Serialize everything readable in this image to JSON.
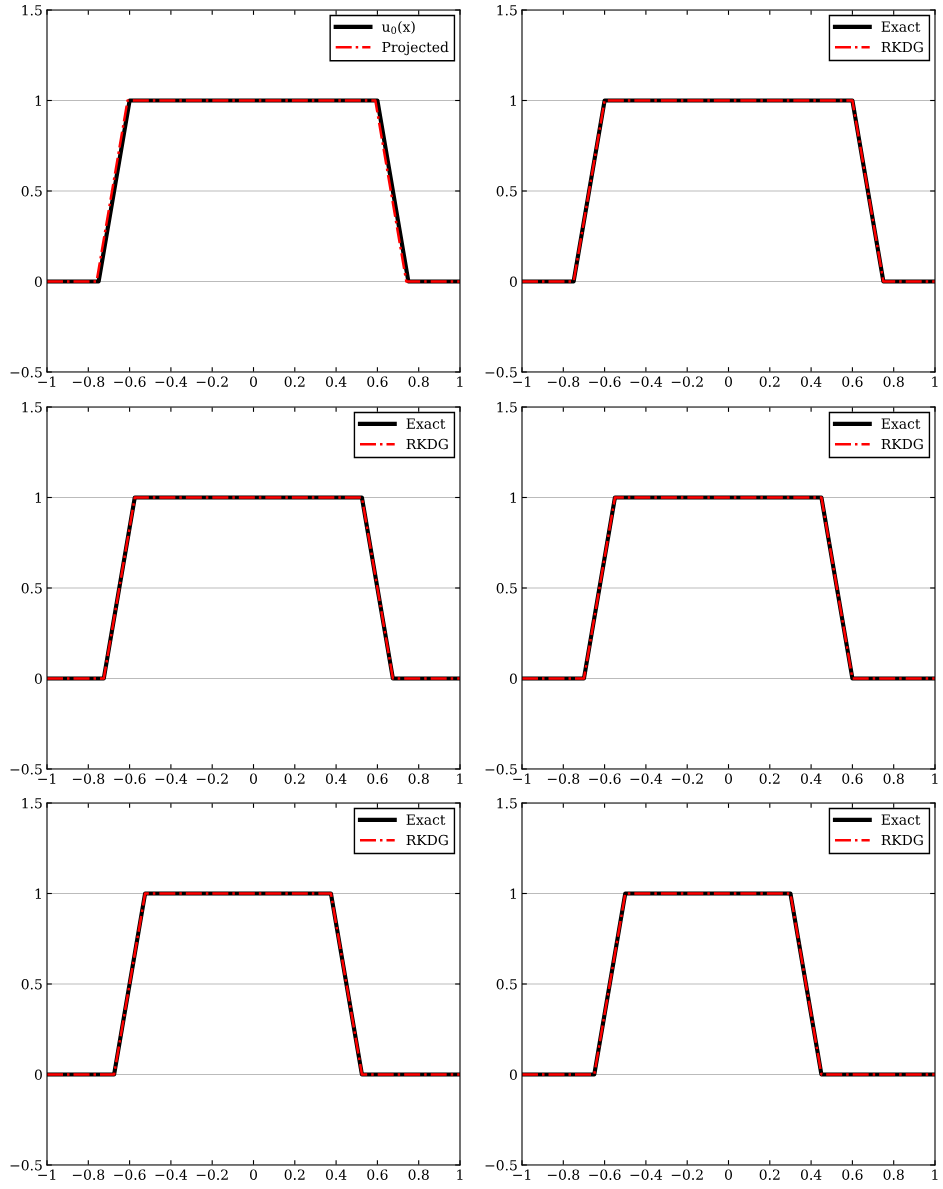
{
  "chart_data": [
    {
      "type": "line",
      "xlim": [
        -1,
        1
      ],
      "ylim": [
        -0.5,
        1.5
      ],
      "xticks": [
        -1,
        -0.8,
        -0.6,
        -0.4,
        -0.2,
        0,
        0.2,
        0.4,
        0.6,
        0.8,
        1
      ],
      "yticks": [
        -0.5,
        0,
        0.5,
        1,
        1.5
      ],
      "grid": "y",
      "legend": "top right",
      "series": [
        {
          "name": "u$_{0}$(x)",
          "color": "#000000",
          "line_style": "solid",
          "x": [
            -1,
            -0.75,
            -0.6,
            0.6,
            0.75,
            1
          ],
          "values": [
            0,
            0,
            1,
            1,
            0,
            0
          ]
        },
        {
          "name": "Projected",
          "color": "#ff0000",
          "line_style": "dashdot",
          "x": [
            -1,
            -0.76,
            -0.61,
            0.59,
            0.74,
            1
          ],
          "values": [
            0,
            0,
            1,
            1,
            0,
            0
          ]
        }
      ]
    },
    {
      "type": "line",
      "xlim": [
        -1,
        1
      ],
      "ylim": [
        -0.5,
        1.5
      ],
      "xticks": [
        -1,
        -0.8,
        -0.6,
        -0.4,
        -0.2,
        0,
        0.2,
        0.4,
        0.6,
        0.8,
        1
      ],
      "yticks": [
        -0.5,
        0,
        0.5,
        1,
        1.5
      ],
      "grid": "y",
      "legend": "top right",
      "series": [
        {
          "name": "Exact",
          "color": "#000000",
          "line_style": "solid",
          "x": [
            -1,
            -0.75,
            -0.6,
            0.6,
            0.75,
            1
          ],
          "values": [
            0,
            0,
            1,
            1,
            0,
            0
          ]
        },
        {
          "name": "RKDG",
          "color": "#ff0000",
          "line_style": "dashdot",
          "x": [
            -1,
            -0.75,
            -0.6,
            0.6,
            0.75,
            1
          ],
          "values": [
            0,
            0,
            1,
            1,
            0,
            0
          ]
        }
      ]
    },
    {
      "type": "line",
      "xlim": [
        -1,
        1
      ],
      "ylim": [
        -0.5,
        1.5
      ],
      "xticks": [
        -1,
        -0.8,
        -0.6,
        -0.4,
        -0.2,
        0,
        0.2,
        0.4,
        0.6,
        0.8,
        1
      ],
      "yticks": [
        -0.5,
        0,
        0.5,
        1,
        1.5
      ],
      "grid": "y",
      "legend": "top right",
      "series": [
        {
          "name": "Exact",
          "color": "#000000",
          "line_style": "solid",
          "x": [
            -1,
            -0.725,
            -0.575,
            0.525,
            0.675,
            1
          ],
          "values": [
            0,
            0,
            1,
            1,
            0,
            0
          ]
        },
        {
          "name": "RKDG",
          "color": "#ff0000",
          "line_style": "dashdot",
          "x": [
            -1,
            -0.725,
            -0.575,
            0.525,
            0.675,
            1
          ],
          "values": [
            0,
            0,
            1,
            1,
            0,
            0
          ]
        }
      ]
    },
    {
      "type": "line",
      "xlim": [
        -1,
        1
      ],
      "ylim": [
        -0.5,
        1.5
      ],
      "xticks": [
        -1,
        -0.8,
        -0.6,
        -0.4,
        -0.2,
        0,
        0.2,
        0.4,
        0.6,
        0.8,
        1
      ],
      "yticks": [
        -0.5,
        0,
        0.5,
        1,
        1.5
      ],
      "grid": "y",
      "legend": "top right",
      "series": [
        {
          "name": "Exact",
          "color": "#000000",
          "line_style": "solid",
          "x": [
            -1,
            -0.7,
            -0.55,
            0.45,
            0.6,
            1
          ],
          "values": [
            0,
            0,
            1,
            1,
            0,
            0
          ]
        },
        {
          "name": "RKDG",
          "color": "#ff0000",
          "line_style": "dashdot",
          "x": [
            -1,
            -0.7,
            -0.55,
            0.45,
            0.6,
            1
          ],
          "values": [
            0,
            0,
            1,
            1,
            0,
            0
          ]
        }
      ]
    },
    {
      "type": "line",
      "xlim": [
        -1,
        1
      ],
      "ylim": [
        -0.5,
        1.5
      ],
      "xticks": [
        -1,
        -0.8,
        -0.6,
        -0.4,
        -0.2,
        0,
        0.2,
        0.4,
        0.6,
        0.8,
        1
      ],
      "yticks": [
        -0.5,
        0,
        0.5,
        1,
        1.5
      ],
      "grid": "y",
      "legend": "top right",
      "series": [
        {
          "name": "Exact",
          "color": "#000000",
          "line_style": "solid",
          "x": [
            -1,
            -0.675,
            -0.525,
            0.375,
            0.525,
            1
          ],
          "values": [
            0,
            0,
            1,
            1,
            0,
            0
          ]
        },
        {
          "name": "RKDG",
          "color": "#ff0000",
          "line_style": "dashdot",
          "x": [
            -1,
            -0.675,
            -0.525,
            0.375,
            0.525,
            1
          ],
          "values": [
            0,
            0,
            1,
            1,
            0,
            0
          ]
        }
      ]
    },
    {
      "type": "line",
      "xlim": [
        -1,
        1
      ],
      "ylim": [
        -0.5,
        1.5
      ],
      "xticks": [
        -1,
        -0.8,
        -0.6,
        -0.4,
        -0.2,
        0,
        0.2,
        0.4,
        0.6,
        0.8,
        1
      ],
      "yticks": [
        -0.5,
        0,
        0.5,
        1,
        1.5
      ],
      "grid": "y",
      "legend": "top right",
      "series": [
        {
          "name": "Exact",
          "color": "#000000",
          "line_style": "solid",
          "x": [
            -1,
            -0.65,
            -0.5,
            0.3,
            0.45,
            1
          ],
          "values": [
            0,
            0,
            1,
            1,
            0,
            0
          ]
        },
        {
          "name": "RKDG",
          "color": "#ff0000",
          "line_style": "dashdot",
          "x": [
            -1,
            -0.65,
            -0.5,
            0.3,
            0.45,
            1
          ],
          "values": [
            0,
            0,
            1,
            1,
            0,
            0
          ]
        }
      ]
    }
  ]
}
